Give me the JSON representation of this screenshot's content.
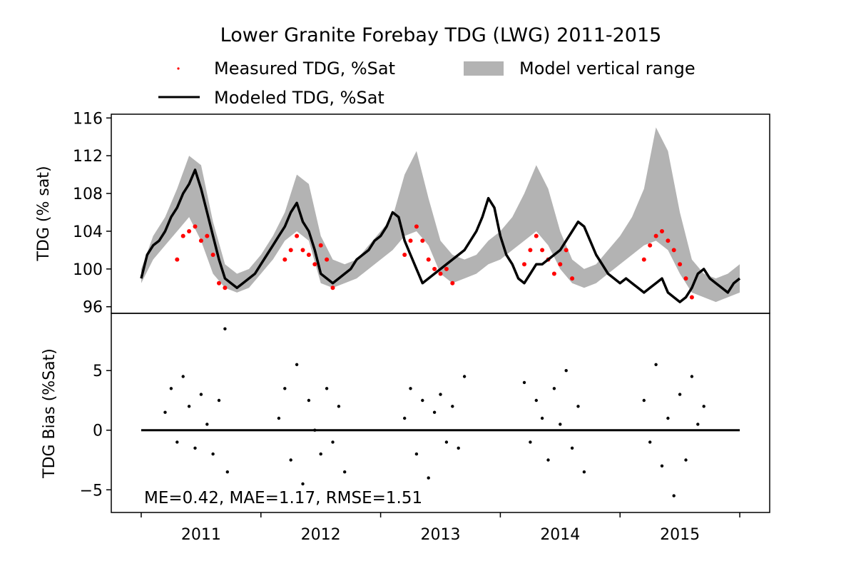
{
  "chart_data": [
    {
      "type": "line",
      "title": "Lower Granite Forebay TDG (LWG) 2011-2015",
      "ylabel": "TDG (% sat)",
      "ylim": [
        95.3,
        116.4
      ],
      "yticks": [
        96,
        100,
        104,
        108,
        112,
        116
      ],
      "xlim": [
        2010.75,
        2016.25
      ],
      "grid": false,
      "legend": {
        "placement": "top",
        "entries": [
          {
            "label": "Measured TDG, %Sat",
            "marker": "dot",
            "color": "#ff0000"
          },
          {
            "label": "Model vertical range",
            "marker": "patch",
            "color": "#b3b3b3"
          },
          {
            "label": "Modeled TDG, %Sat",
            "marker": "line",
            "color": "#000000"
          }
        ]
      },
      "series": [
        {
          "name": "Modeled TDG, %Sat",
          "color": "#000000",
          "x": [
            2011.0,
            2011.05,
            2011.1,
            2011.15,
            2011.2,
            2011.25,
            2011.3,
            2011.35,
            2011.4,
            2011.45,
            2011.5,
            2011.55,
            2011.6,
            2011.65,
            2011.7,
            2011.75,
            2011.8,
            2011.85,
            2011.9,
            2011.95,
            2012.0,
            2012.05,
            2012.1,
            2012.15,
            2012.2,
            2012.25,
            2012.3,
            2012.35,
            2012.4,
            2012.45,
            2012.5,
            2012.55,
            2012.6,
            2012.65,
            2012.7,
            2012.75,
            2012.8,
            2012.85,
            2012.9,
            2012.95,
            2013.0,
            2013.05,
            2013.1,
            2013.15,
            2013.2,
            2013.25,
            2013.3,
            2013.35,
            2013.4,
            2013.45,
            2013.5,
            2013.55,
            2013.6,
            2013.65,
            2013.7,
            2013.75,
            2013.8,
            2013.85,
            2013.9,
            2013.95,
            2014.0,
            2014.05,
            2014.1,
            2014.15,
            2014.2,
            2014.25,
            2014.3,
            2014.35,
            2014.4,
            2014.45,
            2014.5,
            2014.55,
            2014.6,
            2014.65,
            2014.7,
            2014.75,
            2014.8,
            2014.85,
            2014.9,
            2014.95,
            2015.0,
            2015.05,
            2015.1,
            2015.15,
            2015.2,
            2015.25,
            2015.3,
            2015.35,
            2015.4,
            2015.45,
            2015.5,
            2015.55,
            2015.6,
            2015.65,
            2015.7,
            2015.75,
            2015.8,
            2015.85,
            2015.9,
            2015.95,
            2016.0
          ],
          "y": [
            99.0,
            101.5,
            102.5,
            103.0,
            104.0,
            105.5,
            106.5,
            108.0,
            109.0,
            110.5,
            108.5,
            106.0,
            103.5,
            101.0,
            99.0,
            98.5,
            98.0,
            98.5,
            99.0,
            99.5,
            100.5,
            101.5,
            102.5,
            103.5,
            104.5,
            106.0,
            107.0,
            105.0,
            104.0,
            102.0,
            99.5,
            99.0,
            98.5,
            99.0,
            99.5,
            100.0,
            101.0,
            101.5,
            102.0,
            103.0,
            103.5,
            104.5,
            106.0,
            105.5,
            103.0,
            101.5,
            100.0,
            98.5,
            99.0,
            99.5,
            100.0,
            100.5,
            101.0,
            101.5,
            102.0,
            103.0,
            104.0,
            105.5,
            107.5,
            106.5,
            103.5,
            101.5,
            100.5,
            99.0,
            98.5,
            99.5,
            100.5,
            100.5,
            101.0,
            101.5,
            102.0,
            103.0,
            104.0,
            105.0,
            104.5,
            103.0,
            101.5,
            100.5,
            99.5,
            99.0,
            98.5,
            99.0,
            98.5,
            98.0,
            97.5,
            98.0,
            98.5,
            99.0,
            97.5,
            97.0,
            96.5,
            97.0,
            98.0,
            99.5,
            100.0,
            99.0,
            98.5,
            98.0,
            97.5,
            98.5,
            99.0
          ]
        },
        {
          "name": "Measured TDG, %Sat",
          "color": "#ff0000",
          "marker": "dot",
          "x": [
            2011.3,
            2011.35,
            2011.4,
            2011.45,
            2011.5,
            2011.55,
            2011.6,
            2011.65,
            2011.7,
            2012.2,
            2012.25,
            2012.3,
            2012.35,
            2012.4,
            2012.45,
            2012.5,
            2012.55,
            2012.6,
            2013.2,
            2013.25,
            2013.3,
            2013.35,
            2013.4,
            2013.45,
            2013.5,
            2013.55,
            2013.6,
            2014.2,
            2014.25,
            2014.3,
            2014.35,
            2014.4,
            2014.45,
            2014.5,
            2014.55,
            2014.6,
            2015.2,
            2015.25,
            2015.3,
            2015.35,
            2015.4,
            2015.45,
            2015.5,
            2015.55,
            2015.6
          ],
          "y": [
            101.0,
            103.5,
            104.0,
            104.5,
            103.0,
            103.5,
            101.5,
            98.5,
            98.0,
            101.0,
            102.0,
            103.5,
            102.0,
            101.5,
            100.5,
            102.5,
            101.0,
            98.0,
            101.5,
            103.0,
            104.5,
            103.0,
            101.0,
            100.0,
            99.5,
            100.0,
            98.5,
            100.5,
            102.0,
            103.5,
            102.0,
            101.0,
            99.5,
            100.5,
            102.0,
            99.0,
            101.0,
            102.5,
            103.5,
            104.0,
            103.0,
            102.0,
            100.5,
            99.0,
            97.0
          ]
        },
        {
          "name": "Model vertical range",
          "color": "#b3b3b3",
          "type": "area",
          "x": [
            2011.0,
            2011.1,
            2011.2,
            2011.3,
            2011.4,
            2011.5,
            2011.6,
            2011.7,
            2011.8,
            2011.9,
            2012.0,
            2012.1,
            2012.2,
            2012.3,
            2012.4,
            2012.5,
            2012.6,
            2012.7,
            2012.8,
            2012.9,
            2013.0,
            2013.1,
            2013.2,
            2013.3,
            2013.4,
            2013.5,
            2013.6,
            2013.7,
            2013.8,
            2013.9,
            2014.0,
            2014.1,
            2014.2,
            2014.3,
            2014.4,
            2014.5,
            2014.6,
            2014.7,
            2014.8,
            2014.9,
            2015.0,
            2015.1,
            2015.2,
            2015.3,
            2015.4,
            2015.5,
            2015.6,
            2015.7,
            2015.8,
            2015.9,
            2016.0
          ],
          "low": [
            98.5,
            101.0,
            102.5,
            104.0,
            105.5,
            103.0,
            99.5,
            98.0,
            97.5,
            98.0,
            99.5,
            101.0,
            103.0,
            104.0,
            103.0,
            98.5,
            98.0,
            98.5,
            99.0,
            100.0,
            101.0,
            102.0,
            103.5,
            104.0,
            102.5,
            99.5,
            98.5,
            99.0,
            99.5,
            100.5,
            101.0,
            102.0,
            103.0,
            104.0,
            102.5,
            100.0,
            98.5,
            98.0,
            98.5,
            99.5,
            100.5,
            101.5,
            102.5,
            103.0,
            102.0,
            99.5,
            97.5,
            97.0,
            96.5,
            97.0,
            97.5
          ],
          "high": [
            100.0,
            103.5,
            105.5,
            108.5,
            112.0,
            111.0,
            105.0,
            100.5,
            99.5,
            100.0,
            101.5,
            103.5,
            106.0,
            110.0,
            109.0,
            103.5,
            101.0,
            100.5,
            101.0,
            102.5,
            104.0,
            105.5,
            110.0,
            112.5,
            107.5,
            103.0,
            101.5,
            101.0,
            101.5,
            103.0,
            104.0,
            105.5,
            108.0,
            111.0,
            108.5,
            104.0,
            101.0,
            100.0,
            100.5,
            102.0,
            103.5,
            105.5,
            108.5,
            115.0,
            112.5,
            106.0,
            101.0,
            99.5,
            99.0,
            99.5,
            100.5
          ]
        }
      ]
    },
    {
      "type": "scatter",
      "ylabel": "TDG Bias (%Sat)",
      "ylim": [
        -6.9,
        9.8
      ],
      "yticks": [
        -5,
        0,
        5
      ],
      "ytick_labels": [
        "−5",
        "0",
        "5"
      ],
      "xlim": [
        2010.75,
        2016.25
      ],
      "xticks": [
        2011,
        2012,
        2013,
        2014,
        2015,
        2016
      ],
      "xtick_labels": [
        {
          "x": 2011.5,
          "label": "2011"
        },
        {
          "x": 2012.5,
          "label": "2012"
        },
        {
          "x": 2013.5,
          "label": "2013"
        },
        {
          "x": 2014.5,
          "label": "2014"
        },
        {
          "x": 2015.5,
          "label": "2015"
        }
      ],
      "annotation": "ME=0.42, MAE=1.17, RMSE=1.51",
      "zero_line": {
        "x": [
          2011.0,
          2016.0
        ],
        "y": 0
      },
      "series": [
        {
          "color": "#000000",
          "marker": "dot",
          "x": [
            2011.2,
            2011.25,
            2011.3,
            2011.35,
            2011.4,
            2011.45,
            2011.5,
            2011.55,
            2011.6,
            2011.65,
            2011.7,
            2011.72,
            2012.15,
            2012.2,
            2012.25,
            2012.3,
            2012.35,
            2012.4,
            2012.45,
            2012.5,
            2012.55,
            2012.6,
            2012.65,
            2012.7,
            2013.2,
            2013.25,
            2013.3,
            2013.35,
            2013.4,
            2013.45,
            2013.5,
            2013.55,
            2013.6,
            2013.65,
            2013.7,
            2014.2,
            2014.25,
            2014.3,
            2014.35,
            2014.4,
            2014.45,
            2014.5,
            2014.55,
            2014.6,
            2014.65,
            2014.7,
            2015.2,
            2015.25,
            2015.3,
            2015.35,
            2015.4,
            2015.45,
            2015.5,
            2015.55,
            2015.6,
            2015.65,
            2015.7
          ],
          "y": [
            1.5,
            3.5,
            -1.0,
            4.5,
            2.0,
            -1.5,
            3.0,
            0.5,
            -2.0,
            2.5,
            8.5,
            -3.5,
            1.0,
            3.5,
            -2.5,
            5.5,
            -4.5,
            2.5,
            0.0,
            -2.0,
            3.5,
            -1.0,
            2.0,
            -3.5,
            1.0,
            3.5,
            -2.0,
            2.5,
            -4.0,
            1.5,
            3.0,
            -1.0,
            2.0,
            -1.5,
            4.5,
            4.0,
            -1.0,
            2.5,
            1.0,
            -2.5,
            3.5,
            0.5,
            5.0,
            -1.5,
            2.0,
            -3.5,
            2.5,
            -1.0,
            5.5,
            -3.0,
            1.0,
            -5.5,
            3.0,
            -2.5,
            4.5,
            0.5,
            2.0
          ]
        }
      ]
    }
  ]
}
